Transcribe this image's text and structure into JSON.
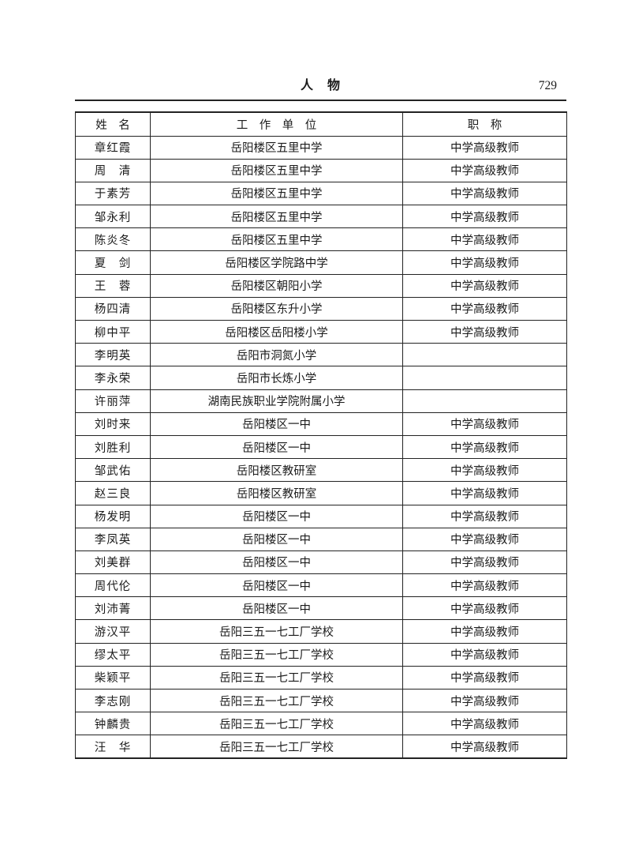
{
  "page_header": {
    "title": "人　物",
    "page_number": "729"
  },
  "table": {
    "columns": [
      "姓　名",
      "工　作　单　位",
      "职　称"
    ],
    "rows": [
      {
        "name": "章红霞",
        "unit": "岳阳楼区五里中学",
        "title": "中学高级教师"
      },
      {
        "name": "周　清",
        "unit": "岳阳楼区五里中学",
        "title": "中学高级教师"
      },
      {
        "name": "于素芳",
        "unit": "岳阳楼区五里中学",
        "title": "中学高级教师"
      },
      {
        "name": "邹永利",
        "unit": "岳阳楼区五里中学",
        "title": "中学高级教师"
      },
      {
        "name": "陈炎冬",
        "unit": "岳阳楼区五里中学",
        "title": "中学高级教师"
      },
      {
        "name": "夏　剑",
        "unit": "岳阳楼区学院路中学",
        "title": "中学高级教师"
      },
      {
        "name": "王　蓉",
        "unit": "岳阳楼区朝阳小学",
        "title": "中学高级教师"
      },
      {
        "name": "杨四清",
        "unit": "岳阳楼区东升小学",
        "title": "中学高级教师"
      },
      {
        "name": "柳中平",
        "unit": "岳阳楼区岳阳楼小学",
        "title": "中学高级教师"
      },
      {
        "name": "李明英",
        "unit": "岳阳市洞氮小学",
        "title": ""
      },
      {
        "name": "李永荣",
        "unit": "岳阳市长炼小学",
        "title": ""
      },
      {
        "name": "许丽萍",
        "unit": "湖南民族职业学院附属小学",
        "title": ""
      },
      {
        "name": "刘时来",
        "unit": "岳阳楼区一中",
        "title": "中学高级教师"
      },
      {
        "name": "刘胜利",
        "unit": "岳阳楼区一中",
        "title": "中学高级教师"
      },
      {
        "name": "邹武佑",
        "unit": "岳阳楼区教研室",
        "title": "中学高级教师"
      },
      {
        "name": "赵三良",
        "unit": "岳阳楼区教研室",
        "title": "中学高级教师"
      },
      {
        "name": "杨发明",
        "unit": "岳阳楼区一中",
        "title": "中学高级教师"
      },
      {
        "name": "李凤英",
        "unit": "岳阳楼区一中",
        "title": "中学高级教师"
      },
      {
        "name": "刘美群",
        "unit": "岳阳楼区一中",
        "title": "中学高级教师"
      },
      {
        "name": "周代伦",
        "unit": "岳阳楼区一中",
        "title": "中学高级教师"
      },
      {
        "name": "刘沛菁",
        "unit": "岳阳楼区一中",
        "title": "中学高级教师"
      },
      {
        "name": "游汉平",
        "unit": "岳阳三五一七工厂学校",
        "title": "中学高级教师"
      },
      {
        "name": "缪太平",
        "unit": "岳阳三五一七工厂学校",
        "title": "中学高级教师"
      },
      {
        "name": "柴颖平",
        "unit": "岳阳三五一七工厂学校",
        "title": "中学高级教师"
      },
      {
        "name": "李志刚",
        "unit": "岳阳三五一七工厂学校",
        "title": "中学高级教师"
      },
      {
        "name": "钟麟贵",
        "unit": "岳阳三五一七工厂学校",
        "title": "中学高级教师"
      },
      {
        "name": "汪　华",
        "unit": "岳阳三五一七工厂学校",
        "title": "中学高级教师"
      }
    ]
  },
  "colors": {
    "background": "#ffffff",
    "text": "#1b1b1b",
    "rule": "#232323"
  }
}
